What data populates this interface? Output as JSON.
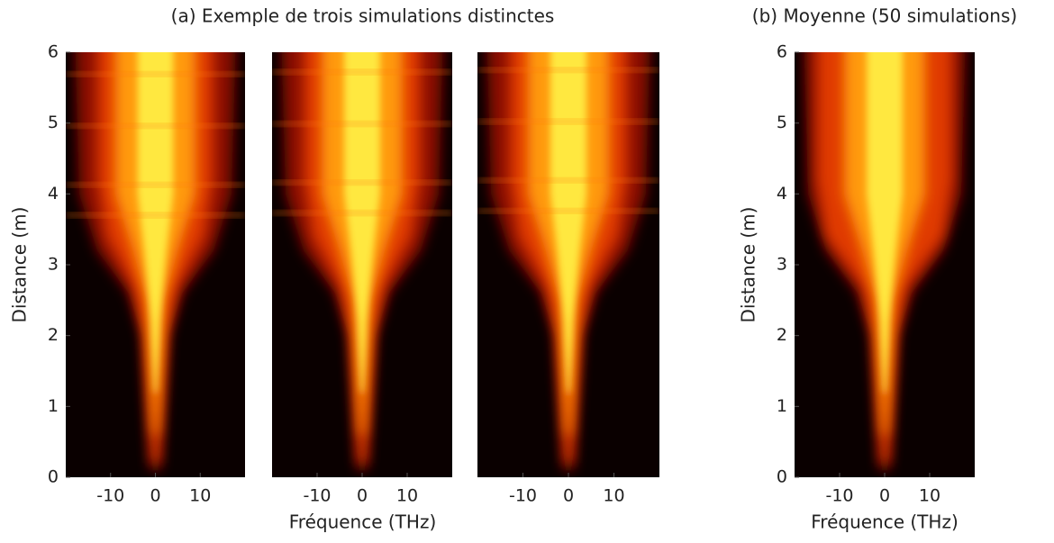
{
  "chart_data": [
    {
      "type": "heatmap",
      "title": "(a) Exemple de trois simulations distinctes",
      "ylabel": "Distance (m)",
      "xlim": [
        -20,
        20
      ],
      "xticks": [
        -10,
        0,
        10
      ],
      "ylim": [
        0,
        6
      ],
      "yticks": [
        0,
        1,
        2,
        3,
        4,
        5,
        6
      ]
    },
    {
      "type": "heatmap",
      "xlabel": "Fréquence (THz)",
      "xlim": [
        -20,
        20
      ],
      "xticks": [
        -10,
        0,
        10
      ],
      "ylim": [
        0,
        6
      ]
    },
    {
      "type": "heatmap",
      "xlim": [
        -20,
        20
      ],
      "xticks": [
        -10,
        0,
        10
      ],
      "ylim": [
        0,
        6
      ]
    },
    {
      "type": "heatmap",
      "title": "(b) Moyenne (50 simulations)",
      "ylabel": "Distance (m)",
      "xlabel": "Fréquence (THz)",
      "xlim": [
        -20,
        20
      ],
      "xticks": [
        -10,
        0,
        10
      ],
      "ylim": [
        0,
        6
      ],
      "yticks": [
        0,
        1,
        2,
        3,
        4,
        5,
        6
      ]
    }
  ]
}
